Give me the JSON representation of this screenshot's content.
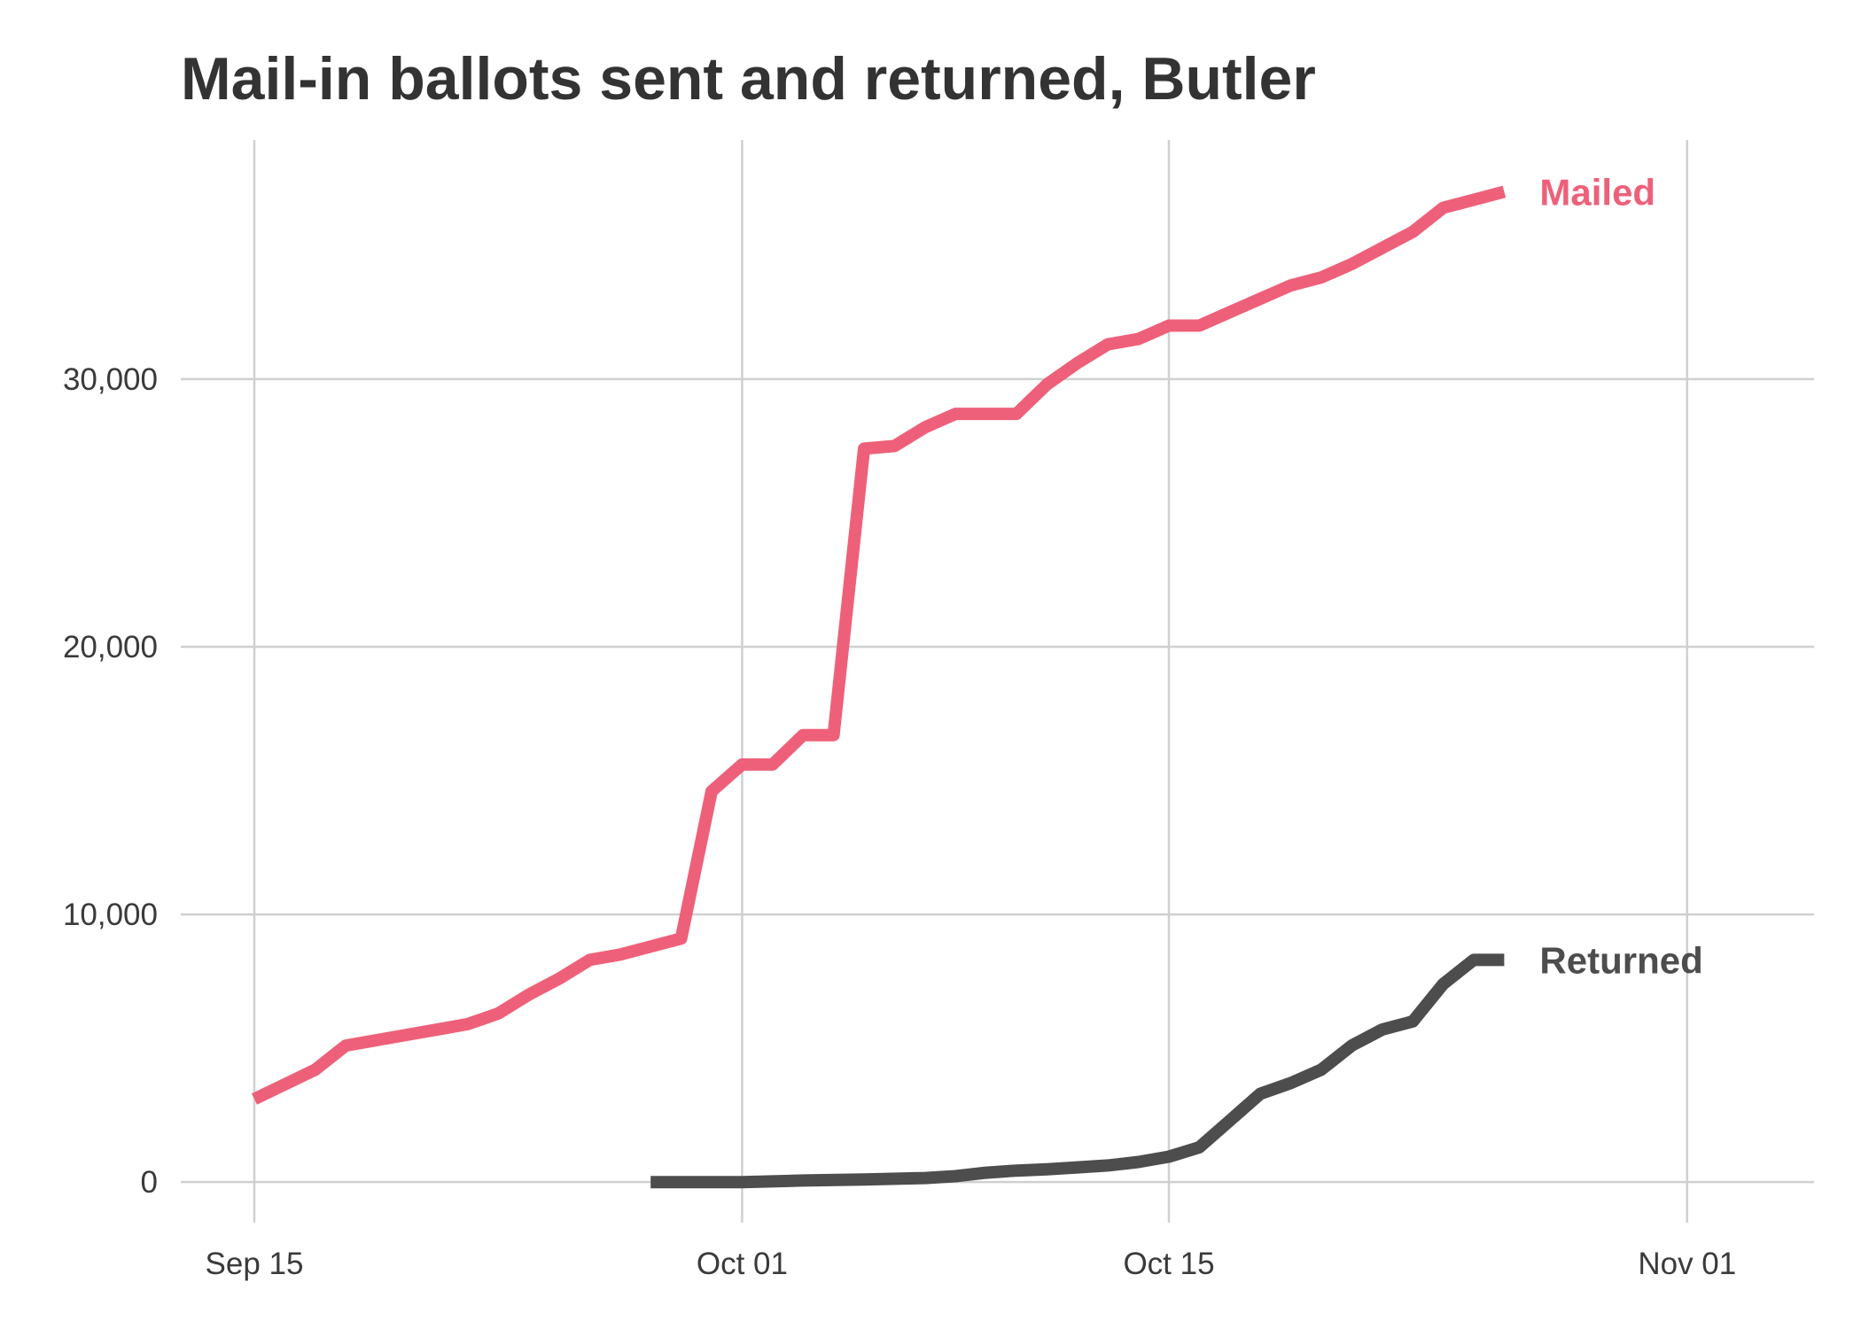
{
  "chart_data": {
    "type": "line",
    "title": "Mail-in ballots sent and returned, Butler",
    "xlabel": "",
    "ylabel": "",
    "x_axis": {
      "type": "date",
      "range": [
        "2020-09-15",
        "2020-11-04"
      ],
      "ticks": [
        {
          "date": "2020-09-15",
          "label": "Sep 15"
        },
        {
          "date": "2020-10-01",
          "label": "Oct 01"
        },
        {
          "date": "2020-10-15",
          "label": "Oct 15"
        },
        {
          "date": "2020-11-01",
          "label": "Nov 01"
        }
      ]
    },
    "y_axis": {
      "range": [
        -1500,
        38500
      ],
      "ticks": [
        {
          "value": 0,
          "label": "0"
        },
        {
          "value": 10000,
          "label": "10,000"
        },
        {
          "value": 20000,
          "label": "20,000"
        },
        {
          "value": 30000,
          "label": "30,000"
        }
      ]
    },
    "grid": true,
    "legend": "direct labels at line ends",
    "series": [
      {
        "name": "Mailed",
        "color": "#EE6079",
        "points": [
          [
            "2020-09-15",
            3100
          ],
          [
            "2020-09-17",
            4200
          ],
          [
            "2020-09-18",
            5100
          ],
          [
            "2020-09-20",
            5500
          ],
          [
            "2020-09-22",
            5900
          ],
          [
            "2020-09-23",
            6300
          ],
          [
            "2020-09-24",
            7000
          ],
          [
            "2020-09-25",
            7600
          ],
          [
            "2020-09-26",
            8300
          ],
          [
            "2020-09-27",
            8500
          ],
          [
            "2020-09-29",
            9100
          ],
          [
            "2020-09-30",
            14600
          ],
          [
            "2020-10-01",
            15600
          ],
          [
            "2020-10-02",
            15600
          ],
          [
            "2020-10-03",
            16700
          ],
          [
            "2020-10-04",
            16700
          ],
          [
            "2020-10-05",
            27400
          ],
          [
            "2020-10-06",
            27500
          ],
          [
            "2020-10-07",
            28200
          ],
          [
            "2020-10-08",
            28700
          ],
          [
            "2020-10-10",
            28700
          ],
          [
            "2020-10-11",
            29800
          ],
          [
            "2020-10-12",
            30600
          ],
          [
            "2020-10-13",
            31300
          ],
          [
            "2020-10-14",
            31500
          ],
          [
            "2020-10-15",
            32000
          ],
          [
            "2020-10-16",
            32000
          ],
          [
            "2020-10-17",
            32500
          ],
          [
            "2020-10-18",
            33000
          ],
          [
            "2020-10-19",
            33500
          ],
          [
            "2020-10-20",
            33800
          ],
          [
            "2020-10-21",
            34300
          ],
          [
            "2020-10-22",
            34900
          ],
          [
            "2020-10-23",
            35500
          ],
          [
            "2020-10-24",
            36400
          ],
          [
            "2020-10-25",
            36700
          ],
          [
            "2020-10-26",
            37000
          ]
        ]
      },
      {
        "name": "Returned",
        "color": "#4D4D4D",
        "points": [
          [
            "2020-09-28",
            0
          ],
          [
            "2020-10-01",
            0
          ],
          [
            "2020-10-03",
            60
          ],
          [
            "2020-10-05",
            100
          ],
          [
            "2020-10-07",
            150
          ],
          [
            "2020-10-08",
            220
          ],
          [
            "2020-10-09",
            350
          ],
          [
            "2020-10-10",
            430
          ],
          [
            "2020-10-11",
            480
          ],
          [
            "2020-10-12",
            550
          ],
          [
            "2020-10-13",
            620
          ],
          [
            "2020-10-14",
            750
          ],
          [
            "2020-10-15",
            950
          ],
          [
            "2020-10-16",
            1300
          ],
          [
            "2020-10-17",
            2300
          ],
          [
            "2020-10-18",
            3300
          ],
          [
            "2020-10-19",
            3700
          ],
          [
            "2020-10-20",
            4200
          ],
          [
            "2020-10-21",
            5100
          ],
          [
            "2020-10-22",
            5700
          ],
          [
            "2020-10-23",
            6000
          ],
          [
            "2020-10-24",
            7400
          ],
          [
            "2020-10-25",
            8300
          ],
          [
            "2020-10-26",
            8300
          ]
        ]
      }
    ]
  }
}
